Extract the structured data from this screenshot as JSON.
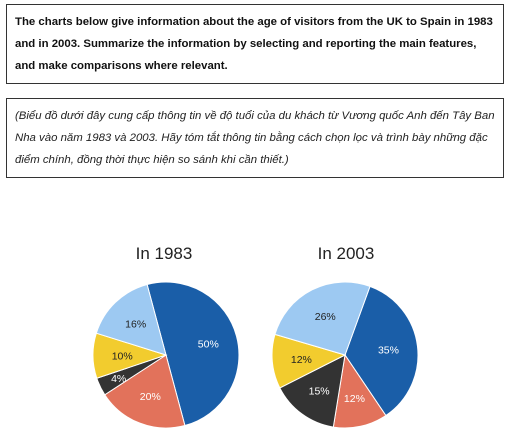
{
  "task": {
    "text": "The charts below give information about the age of visitors from the UK to Spain in 1983 and in 2003. Summarize the information by selecting and reporting the main features, and make comparisons where relevant."
  },
  "translation": {
    "text": "(Biểu đồ dưới đây cung cấp thông tin về độ tuổi của du khách từ Vương quốc Anh đến Tây Ban Nha vào năm 1983 và 2003. Hãy tóm tắt thông tin bằng cách chọn lọc và trình bày những đặc điểm chính, đồng thời thực hiện so sánh khi cần thiết.)"
  },
  "chart_data": [
    {
      "type": "pie",
      "title": "In 1983",
      "slices": [
        {
          "value": 50,
          "label": "50%",
          "color": "#1a5ea8"
        },
        {
          "value": 20,
          "label": "20%",
          "color": "#e2725b"
        },
        {
          "value": 4,
          "label": "4%",
          "color": "#333333"
        },
        {
          "value": 10,
          "label": "10%",
          "color": "#f2cc2e"
        },
        {
          "value": 16,
          "label": "16%",
          "color": "#9dc9f2"
        }
      ]
    },
    {
      "type": "pie",
      "title": "In 2003",
      "slices": [
        {
          "value": 35,
          "label": "35%",
          "color": "#1a5ea8"
        },
        {
          "value": 12,
          "label": "12%",
          "color": "#e2725b"
        },
        {
          "value": 15,
          "label": "15%",
          "color": "#333333"
        },
        {
          "value": 12,
          "label": "12%",
          "color": "#f2cc2e"
        },
        {
          "value": 26,
          "label": "26%",
          "color": "#9dc9f2"
        }
      ]
    }
  ]
}
